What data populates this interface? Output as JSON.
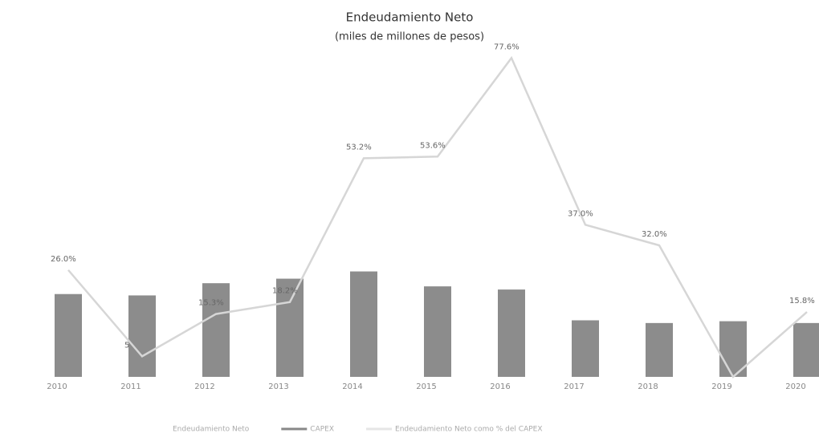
{
  "chart_data": {
    "type": "bar-line",
    "title": "Endeudamiento Neto",
    "subtitle": "(miles de millones de pesos)",
    "categories": [
      "2010",
      "2011",
      "2012",
      "2013",
      "2014",
      "2015",
      "2016",
      "2017",
      "2018",
      "2019",
      "2020"
    ],
    "ylim": [
      0,
      700
    ],
    "y2lim": [
      0,
      80
    ],
    "series": [
      {
        "name": "Endeudamiento Neto",
        "color": "#8c8c8c",
        "values": [
          183,
          180,
          207,
          217,
          233,
          200,
          193,
          125,
          119,
          123,
          119
        ]
      },
      {
        "name": "Endeudamiento Neto como % del CAPEX",
        "color": "#d6d6d6",
        "axis": "y2",
        "values": [
          26.0,
          5,
          15.3,
          18.2,
          53.2,
          53.6,
          77.6,
          37.0,
          32.0,
          0,
          15.8
        ],
        "value_labels": [
          "26.0%",
          "5",
          "15.3%",
          "18.2%",
          "53.2%",
          "53.6%",
          "77.6%",
          "37.0%",
          "32.0%",
          null,
          "15.8%"
        ]
      }
    ],
    "legend": [
      {
        "name": "Endeudamiento Neto",
        "color": "#e0e0e0"
      },
      {
        "name": "CAPEX",
        "color": "#888888"
      },
      {
        "name": "Endeudamiento Neto como % del CAPEX",
        "color": "#e6e6e6"
      }
    ]
  }
}
